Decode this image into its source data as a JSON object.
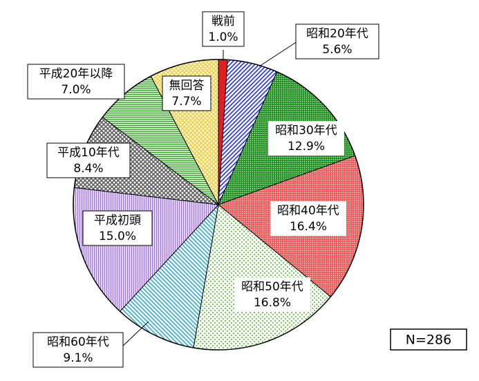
{
  "chart_data": {
    "type": "pie",
    "categories": [
      "戦前",
      "昭和20年代",
      "昭和30年代",
      "昭和40年代",
      "昭和50年代",
      "昭和60年代",
      "平成初頭",
      "平成10年代",
      "平成20年以降",
      "無回答"
    ],
    "values": [
      1.0,
      5.6,
      12.9,
      16.4,
      16.8,
      9.1,
      15.0,
      8.4,
      7.0,
      7.7
    ],
    "value_labels": [
      "1.0%",
      "5.6%",
      "12.9%",
      "16.4%",
      "16.8%",
      "9.1%",
      "15.0%",
      "8.4%",
      "7.0%",
      "7.7%"
    ],
    "colors": [
      "#e02020",
      "#2030e0",
      "#109010",
      "#f05050",
      "#70d050",
      "#20b0e0",
      "#a070e0",
      "#606060",
      "#30a020",
      "#f0d040"
    ],
    "annotation": "N=286"
  }
}
